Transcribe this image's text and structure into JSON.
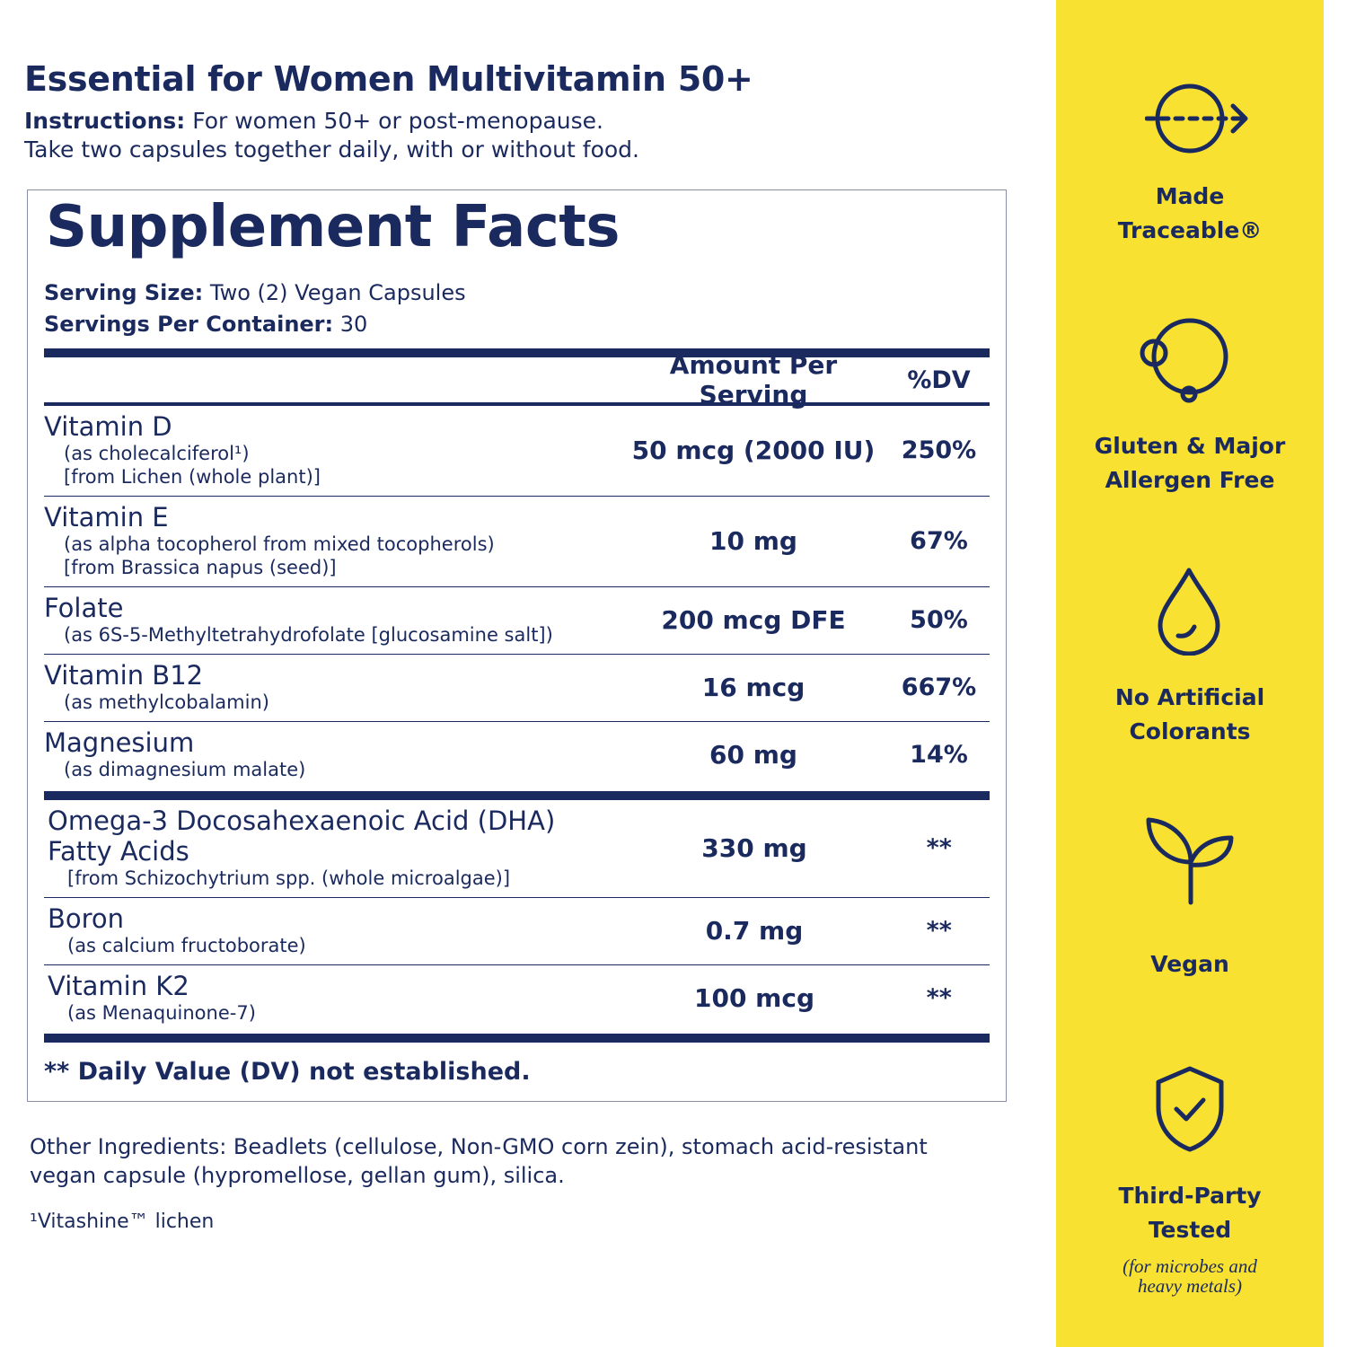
{
  "header": {
    "title": "Essential for Women Multivitamin 50+",
    "instructions_label": "Instructions:",
    "instructions_text": "For women 50+ or post-menopause.",
    "instructions_line2": "Take two capsules together daily, with or without food."
  },
  "facts": {
    "title": "Supplement Facts",
    "serving_size_label": "Serving Size:",
    "serving_size": "Two (2) Vegan Capsules",
    "servings_label": "Servings Per Container:",
    "servings": 30,
    "columns": [
      "Amount Per Serving",
      "%DV"
    ],
    "groups": [
      [
        {
          "name_lines": [
            "Vitamin D"
          ],
          "detail_lines": [
            "(as cholecalciferol¹)",
            "[from Lichen (whole plant)]"
          ],
          "amount": "50 mcg (2000 IU)",
          "dv": "250%"
        },
        {
          "name_lines": [
            "Vitamin E"
          ],
          "detail_lines": [
            "(as alpha tocopherol from mixed tocopherols)",
            "[from Brassica napus (seed)]"
          ],
          "amount": "10 mg",
          "dv": "67%"
        },
        {
          "name_lines": [
            "Folate"
          ],
          "detail_lines": [
            "(as 6S-5-Methyltetrahydrofolate [glucosamine salt])"
          ],
          "amount": "200 mcg DFE",
          "dv": "50%"
        },
        {
          "name_lines": [
            "Vitamin B12"
          ],
          "detail_lines": [
            "(as methylcobalamin)"
          ],
          "amount": "16 mcg",
          "dv": "667%"
        },
        {
          "name_lines": [
            "Magnesium"
          ],
          "detail_lines": [
            "(as dimagnesium malate)"
          ],
          "amount": "60 mg",
          "dv": "14%"
        }
      ],
      [
        {
          "name_lines": [
            "Omega-3 Docosahexaenoic Acid (DHA)",
            "Fatty Acids"
          ],
          "detail_lines": [
            "[from Schizochytrium spp. (whole microalgae)]"
          ],
          "amount": "330 mg",
          "dv": "**"
        },
        {
          "name_lines": [
            "Boron"
          ],
          "detail_lines": [
            "(as calcium fructoborate)"
          ],
          "amount": "0.7 mg",
          "dv": "**"
        },
        {
          "name_lines": [
            "Vitamin K2"
          ],
          "detail_lines": [
            "(as Menaquinone-7)"
          ],
          "amount": "100 mcg",
          "dv": "**"
        }
      ]
    ],
    "footnote": "** Daily Value (DV) not established."
  },
  "other_ingredients": [
    "Other Ingredients: Beadlets (cellulose, Non-GMO corn zein), stomach acid-resistant",
    "vegan capsule (hypromellose, gellan gum), silica."
  ],
  "footnote": "¹Vitashine™ lichen",
  "badges": [
    {
      "label_lines": [
        "Made",
        "Traceable®"
      ]
    },
    {
      "label_lines": [
        "Gluten & Major",
        "Allergen Free"
      ]
    },
    {
      "label_lines": [
        "No Artificial",
        "Colorants"
      ]
    },
    {
      "label_lines": [
        "Vegan"
      ]
    },
    {
      "label_lines": [
        "Third-Party",
        "Tested"
      ],
      "note_lines": [
        "(for microbes and",
        "heavy metals)"
      ]
    }
  ]
}
